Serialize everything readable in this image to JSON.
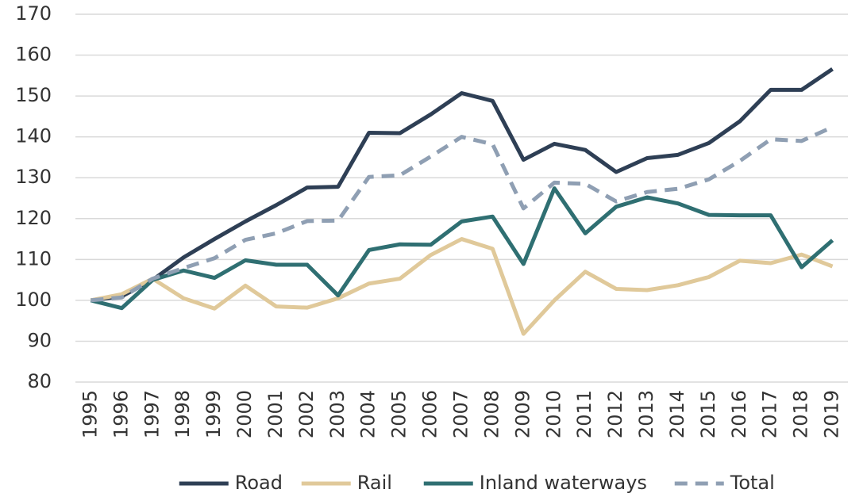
{
  "chart_data": {
    "type": "line",
    "categories": [
      "1995",
      "1996",
      "1997",
      "1998",
      "1999",
      "2000",
      "2001",
      "2002",
      "2003",
      "2004",
      "2005",
      "2006",
      "2007",
      "2008",
      "2009",
      "2010",
      "2011",
      "2012",
      "2013",
      "2014",
      "2015",
      "2016",
      "2017",
      "2018",
      "2019"
    ],
    "series": [
      {
        "name": "Road",
        "color": "#2e3f55",
        "values": [
          100,
          101,
          105,
          110.5,
          115,
          119.3,
          123.3,
          127.6,
          127.8,
          141,
          140.9,
          145.5,
          150.7,
          148.8,
          134.4,
          138.3,
          136.8,
          131.4,
          134.8,
          135.6,
          138.5,
          143.8,
          151.5,
          151.5,
          156.6
        ]
      },
      {
        "name": "Rail",
        "color": "#e0c99a",
        "values": [
          100,
          101.5,
          105.3,
          100.5,
          98,
          103.6,
          98.5,
          98.2,
          100.5,
          104.1,
          105.3,
          111.1,
          115,
          112.6,
          91.8,
          100,
          107,
          102.8,
          102.5,
          103.7,
          105.7,
          109.7,
          109.1,
          111.2,
          108.3
        ]
      },
      {
        "name": "Inland waterways",
        "color": "#2f6f72",
        "values": [
          100,
          98.1,
          105,
          107.3,
          105.5,
          109.8,
          108.7,
          108.7,
          101.2,
          112.3,
          113.7,
          113.6,
          119.3,
          120.5,
          108.9,
          127.4,
          116.4,
          122.9,
          125.2,
          123.7,
          120.9,
          120.8,
          120.8,
          108.1,
          114.7
        ]
      },
      {
        "name": "Total",
        "color": "#8f9fb3",
        "dashed": true,
        "values": [
          100,
          100.7,
          105.3,
          107.9,
          110.3,
          114.8,
          116.4,
          119.4,
          119.5,
          130.2,
          130.6,
          135.2,
          140,
          138.2,
          122.5,
          128.8,
          128.5,
          124.2,
          126.5,
          127.3,
          129.6,
          134.1,
          139.4,
          139,
          142.4
        ]
      }
    ],
    "ylim": [
      80,
      170
    ],
    "yticks": [
      80,
      90,
      100,
      110,
      120,
      130,
      140,
      150,
      160,
      170
    ],
    "grid": true,
    "legend": "bottom"
  }
}
